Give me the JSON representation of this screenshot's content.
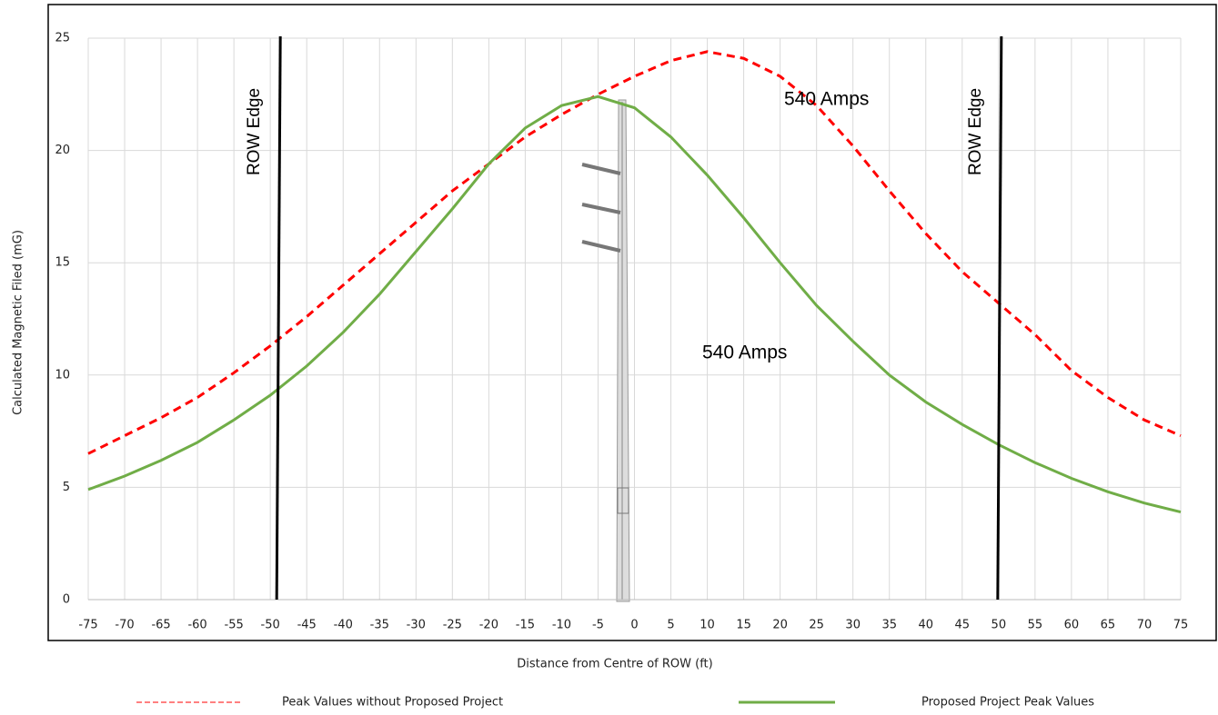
{
  "chart_data": {
    "type": "line",
    "y_label": "Calculated Magnetic Filed (mG)",
    "x_label": "Distance from Centre of ROW (ft)",
    "x": [
      -75,
      -70,
      -65,
      -60,
      -55,
      -50,
      -45,
      -40,
      -35,
      -30,
      -25,
      -20,
      -15,
      -10,
      -5,
      0,
      5,
      10,
      15,
      20,
      25,
      30,
      35,
      40,
      45,
      50,
      55,
      60,
      65,
      70,
      75
    ],
    "series": [
      {
        "name": "Peak Values without Proposed Project",
        "color": "#ff0000",
        "dash": true,
        "values": [
          6.5,
          7.3,
          8.1,
          9.0,
          10.1,
          11.3,
          12.6,
          14.0,
          15.4,
          16.8,
          18.2,
          19.4,
          20.6,
          21.6,
          22.5,
          23.3,
          24.0,
          24.4,
          24.1,
          23.3,
          22.0,
          20.2,
          18.2,
          16.3,
          14.6,
          13.2,
          11.8,
          10.2,
          9.0,
          8.0,
          7.3
        ]
      },
      {
        "name": "Proposed Project Peak Values",
        "color": "#70ad47",
        "dash": false,
        "values": [
          4.9,
          5.5,
          6.2,
          7.0,
          8.0,
          9.1,
          10.4,
          11.9,
          13.6,
          15.5,
          17.4,
          19.4,
          21.0,
          22.0,
          22.4,
          21.9,
          20.6,
          18.9,
          17.0,
          15.0,
          13.1,
          11.5,
          10.0,
          8.8,
          7.8,
          6.9,
          6.1,
          5.4,
          4.8,
          4.3,
          3.9
        ]
      }
    ],
    "vlines": [
      {
        "x": -49,
        "label": "ROW Edge"
      },
      {
        "x": 50,
        "label": "ROW Edge"
      }
    ],
    "annotations": [
      "540 Amps",
      "540 Amps"
    ],
    "xlim": [
      -75,
      75
    ],
    "ylim": [
      0,
      25
    ],
    "xticks": [
      -75,
      -70,
      -65,
      -60,
      -55,
      -50,
      -45,
      -40,
      -35,
      -30,
      -25,
      -20,
      -15,
      -10,
      -5,
      0,
      5,
      10,
      15,
      20,
      25,
      30,
      35,
      40,
      45,
      50,
      55,
      60,
      65,
      70,
      75
    ],
    "yticks": [
      0,
      5,
      10,
      15,
      20,
      25
    ],
    "grid": true
  }
}
